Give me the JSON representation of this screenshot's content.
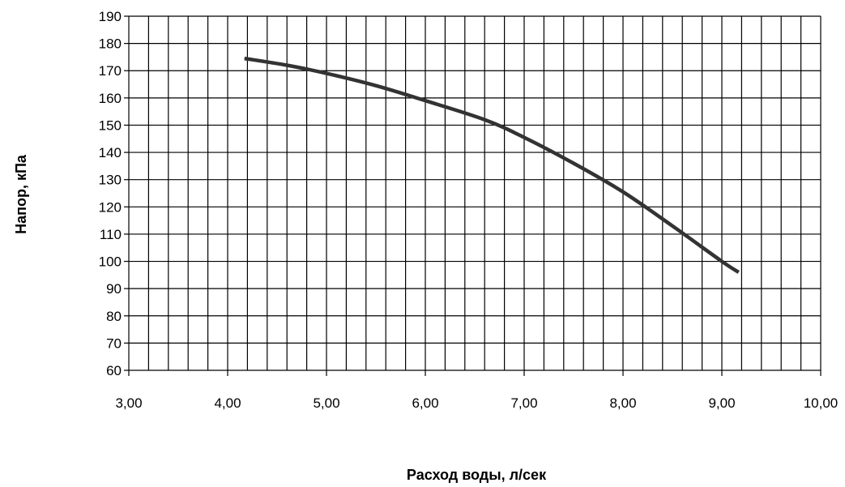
{
  "chart_data": {
    "type": "line",
    "xlabel": "Расход воды, л/сек",
    "ylabel": "Напор, кПа",
    "xlim": [
      3.0,
      10.0
    ],
    "ylim": [
      60,
      190
    ],
    "x_tick_labels": [
      "3,00",
      "4,00",
      "5,00",
      "6,00",
      "7,00",
      "8,00",
      "9,00",
      "10,00"
    ],
    "y_tick_labels": [
      "60",
      "70",
      "80",
      "90",
      "100",
      "110",
      "120",
      "130",
      "140",
      "150",
      "160",
      "170",
      "180",
      "190"
    ],
    "grid": true,
    "line_color": "#333333",
    "series": [
      {
        "x": [
          4.17,
          4.6,
          5.0,
          5.5,
          6.0,
          6.6,
          7.0,
          7.5,
          8.0,
          8.5,
          9.0,
          9.17
        ],
        "y": [
          174.5,
          172,
          169,
          164.5,
          159,
          152,
          145.5,
          136,
          125.5,
          113,
          100,
          96
        ]
      }
    ]
  }
}
